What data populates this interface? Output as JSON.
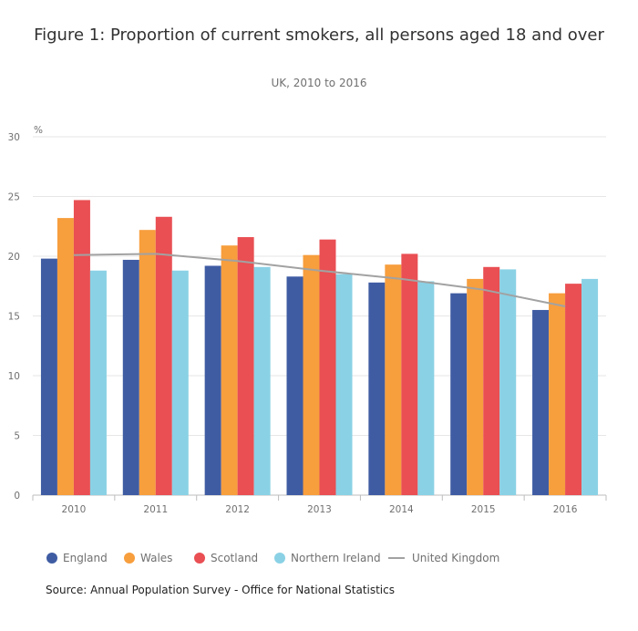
{
  "chart_data": {
    "type": "bar",
    "title": "Figure 1: Proportion of current smokers, all persons aged 18 and over",
    "subtitle": "UK, 2010 to 2016",
    "ylabel": "%",
    "xlabel": "",
    "ylim": [
      0,
      30
    ],
    "yticks": [
      0,
      5,
      10,
      15,
      20,
      25,
      30
    ],
    "grid": true,
    "legend_position": "bottom",
    "categories": [
      "2010",
      "2011",
      "2012",
      "2013",
      "2014",
      "2015",
      "2016"
    ],
    "series": [
      {
        "name": "England",
        "kind": "bar",
        "color": "#3f5ca3",
        "values": [
          19.8,
          19.7,
          19.2,
          18.3,
          17.8,
          16.9,
          15.5
        ]
      },
      {
        "name": "Wales",
        "kind": "bar",
        "color": "#f79e3d",
        "values": [
          23.2,
          22.2,
          20.9,
          20.1,
          19.3,
          18.1,
          16.9
        ]
      },
      {
        "name": "Scotland",
        "kind": "bar",
        "color": "#e94f53",
        "values": [
          24.7,
          23.3,
          21.6,
          21.4,
          20.2,
          19.1,
          17.7
        ]
      },
      {
        "name": "Northern Ireland",
        "kind": "bar",
        "color": "#8ad1e5",
        "values": [
          18.8,
          18.8,
          19.1,
          18.5,
          17.9,
          18.9,
          18.1
        ]
      },
      {
        "name": "United Kingdom",
        "kind": "line",
        "color": "#a2a2a2",
        "values": [
          20.1,
          20.2,
          19.6,
          18.8,
          18.1,
          17.2,
          15.8
        ]
      }
    ]
  },
  "source": "Source: Annual Population Survey - Office for National Statistics"
}
